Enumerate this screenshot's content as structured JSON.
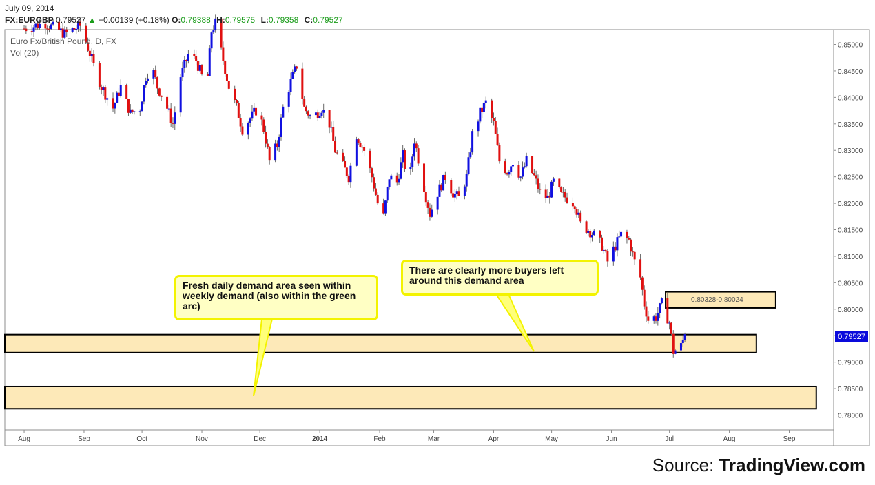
{
  "header": {
    "date": "July 09, 2014",
    "symbol": "FX:EURGBP",
    "last": "0.79527",
    "change": "+0.00139 (+0.18%)",
    "open_label": "O:",
    "open": "0.79388",
    "high_label": "H:",
    "high": "0.79575",
    "low_label": "L:",
    "low": "0.79358",
    "close_label": "C:",
    "close": "0.79527"
  },
  "overlay": {
    "title": "Euro Fx/British Pound, D, FX",
    "vol": "Vol (20)"
  },
  "price_tag": "0.79527",
  "annotations": {
    "callout_left": "Fresh daily demand area seen within weekly demand (also within the green arc)",
    "callout_right": "There are clearly more buyers left around this demand area",
    "zone_label": "0.80328-0.80024"
  },
  "source": {
    "prefix": "Source: ",
    "brand": "TradingView.com"
  },
  "colors": {
    "up": "#1010e0",
    "down": "#e01010",
    "zone_fill": "#fde9b8",
    "callout_border": "#f3f300",
    "callout_fill": "#ffffc4"
  },
  "chart_data": {
    "type": "candlestick",
    "ylim": [
      0.7772,
      0.8528
    ],
    "y_ticks": [
      "0.85000",
      "0.84500",
      "0.84000",
      "0.83500",
      "0.83000",
      "0.82500",
      "0.82000",
      "0.81500",
      "0.81000",
      "0.80500",
      "0.80000",
      "0.79500",
      "0.79000",
      "0.78500",
      "0.78000"
    ],
    "x_ticks": [
      "Aug",
      "Sep",
      "Oct",
      "Nov",
      "Dec",
      "2014",
      "Feb",
      "Mar",
      "Apr",
      "May",
      "Jun",
      "Jul",
      "Aug",
      "Sep"
    ],
    "x_range": [
      "2013-07-22",
      "2014-09-24"
    ],
    "last_price": 0.79527,
    "demand_zones": [
      {
        "from": "2013-07-22",
        "to": "2014-08-15",
        "low": 0.7918,
        "high": 0.7952
      },
      {
        "from": "2013-07-22",
        "to": "2014-09-15",
        "low": 0.7812,
        "high": 0.7854
      },
      {
        "from": "2014-06-29",
        "to": "2014-08-25",
        "low": 0.80024,
        "high": 0.80328
      }
    ],
    "closes": [
      {
        "date": "2013-08-01",
        "close": 0.853
      },
      {
        "date": "2013-08-12",
        "close": 0.854
      },
      {
        "date": "2013-08-22",
        "close": 0.852
      },
      {
        "date": "2013-08-30",
        "close": 0.8535
      },
      {
        "date": "2013-09-02",
        "close": 0.8505
      },
      {
        "date": "2013-09-06",
        "close": 0.846
      },
      {
        "date": "2013-09-10",
        "close": 0.842
      },
      {
        "date": "2013-09-16",
        "close": 0.838
      },
      {
        "date": "2013-09-20",
        "close": 0.842
      },
      {
        "date": "2013-09-25",
        "close": 0.837
      },
      {
        "date": "2013-09-30",
        "close": 0.838
      },
      {
        "date": "2013-10-03",
        "close": 0.844
      },
      {
        "date": "2013-10-06",
        "close": 0.846
      },
      {
        "date": "2013-10-09",
        "close": 0.842
      },
      {
        "date": "2013-10-13",
        "close": 0.839
      },
      {
        "date": "2013-10-17",
        "close": 0.835
      },
      {
        "date": "2013-10-21",
        "close": 0.844
      },
      {
        "date": "2013-10-25",
        "close": 0.848
      },
      {
        "date": "2013-10-29",
        "close": 0.847
      },
      {
        "date": "2013-11-01",
        "close": 0.844
      },
      {
        "date": "2013-11-04",
        "close": 0.844
      },
      {
        "date": "2013-11-06",
        "close": 0.8525
      },
      {
        "date": "2013-11-08",
        "close": 0.854
      },
      {
        "date": "2013-11-12",
        "close": 0.847
      },
      {
        "date": "2013-11-15",
        "close": 0.842
      },
      {
        "date": "2013-11-19",
        "close": 0.838
      },
      {
        "date": "2013-11-22",
        "close": 0.834
      },
      {
        "date": "2013-11-26",
        "close": 0.836
      },
      {
        "date": "2013-11-30",
        "close": 0.838
      },
      {
        "date": "2013-12-03",
        "close": 0.834
      },
      {
        "date": "2013-12-06",
        "close": 0.828
      },
      {
        "date": "2013-12-10",
        "close": 0.831
      },
      {
        "date": "2013-12-13",
        "close": 0.838
      },
      {
        "date": "2013-12-17",
        "close": 0.843
      },
      {
        "date": "2013-12-20",
        "close": 0.846
      },
      {
        "date": "2013-12-24",
        "close": 0.838
      },
      {
        "date": "2013-12-28",
        "close": 0.836
      },
      {
        "date": "2014-01-02",
        "close": 0.838
      },
      {
        "date": "2014-01-06",
        "close": 0.835
      },
      {
        "date": "2014-01-09",
        "close": 0.83
      },
      {
        "date": "2014-01-13",
        "close": 0.827
      },
      {
        "date": "2014-01-16",
        "close": 0.825
      },
      {
        "date": "2014-01-20",
        "close": 0.833
      },
      {
        "date": "2014-01-24",
        "close": 0.83
      },
      {
        "date": "2014-01-28",
        "close": 0.825
      },
      {
        "date": "2014-01-31",
        "close": 0.82
      },
      {
        "date": "2014-02-03",
        "close": 0.8175
      },
      {
        "date": "2014-02-06",
        "close": 0.825
      },
      {
        "date": "2014-02-10",
        "close": 0.824
      },
      {
        "date": "2014-02-13",
        "close": 0.829
      },
      {
        "date": "2014-02-16",
        "close": 0.823
      },
      {
        "date": "2014-02-19",
        "close": 0.832
      },
      {
        "date": "2014-02-24",
        "close": 0.823
      },
      {
        "date": "2014-02-27",
        "close": 0.818
      },
      {
        "date": "2014-03-03",
        "close": 0.822
      },
      {
        "date": "2014-03-07",
        "close": 0.825
      },
      {
        "date": "2014-03-11",
        "close": 0.822
      },
      {
        "date": "2014-03-14",
        "close": 0.821
      },
      {
        "date": "2014-03-18",
        "close": 0.825
      },
      {
        "date": "2014-03-21",
        "close": 0.833
      },
      {
        "date": "2014-03-25",
        "close": 0.837
      },
      {
        "date": "2014-03-28",
        "close": 0.839
      },
      {
        "date": "2014-04-01",
        "close": 0.835
      },
      {
        "date": "2014-04-04",
        "close": 0.828
      },
      {
        "date": "2014-04-08",
        "close": 0.826
      },
      {
        "date": "2014-04-11",
        "close": 0.828
      },
      {
        "date": "2014-04-15",
        "close": 0.825
      },
      {
        "date": "2014-04-18",
        "close": 0.828
      },
      {
        "date": "2014-04-22",
        "close": 0.825
      },
      {
        "date": "2014-04-25",
        "close": 0.822
      },
      {
        "date": "2014-04-29",
        "close": 0.821
      },
      {
        "date": "2014-05-02",
        "close": 0.824
      },
      {
        "date": "2014-05-06",
        "close": 0.8215
      },
      {
        "date": "2014-05-09",
        "close": 0.821
      },
      {
        "date": "2014-05-13",
        "close": 0.82
      },
      {
        "date": "2014-05-16",
        "close": 0.816
      },
      {
        "date": "2014-05-20",
        "close": 0.815
      },
      {
        "date": "2014-05-23",
        "close": 0.814
      },
      {
        "date": "2014-05-27",
        "close": 0.812
      },
      {
        "date": "2014-05-30",
        "close": 0.809
      },
      {
        "date": "2014-06-03",
        "close": 0.812
      },
      {
        "date": "2014-06-06",
        "close": 0.814
      },
      {
        "date": "2014-06-10",
        "close": 0.813
      },
      {
        "date": "2014-06-13",
        "close": 0.809
      },
      {
        "date": "2014-06-16",
        "close": 0.806
      },
      {
        "date": "2014-06-18",
        "close": 0.801
      },
      {
        "date": "2014-06-20",
        "close": 0.798
      },
      {
        "date": "2014-06-24",
        "close": 0.7985
      },
      {
        "date": "2014-06-27",
        "close": 0.801
      },
      {
        "date": "2014-07-01",
        "close": 0.7975
      },
      {
        "date": "2014-07-03",
        "close": 0.792
      },
      {
        "date": "2014-07-07",
        "close": 0.793
      },
      {
        "date": "2014-07-09",
        "close": 0.79527
      }
    ]
  }
}
